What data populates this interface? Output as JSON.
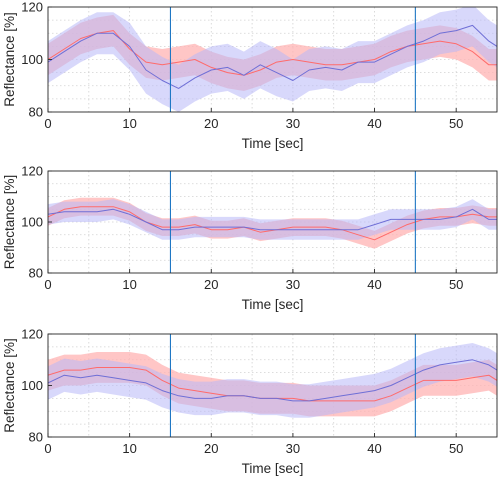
{
  "chart_data": [
    {
      "type": "line",
      "xlabel": "Time [sec]",
      "ylabel": "Reflectance [%]",
      "xlim": [
        0,
        55
      ],
      "ylim": [
        80,
        120
      ],
      "xticks": [
        0,
        10,
        20,
        30,
        40,
        50
      ],
      "yticks": [
        80,
        100,
        120
      ],
      "grid": true,
      "grid_style": "dotted",
      "vlines": [
        15,
        45
      ],
      "series": [
        {
          "color": "#ff6b6b",
          "band_color": "#ffb3b3",
          "x": [
            0,
            2,
            4,
            6,
            8,
            10,
            12,
            14,
            16,
            18,
            20,
            22,
            24,
            26,
            28,
            30,
            32,
            34,
            36,
            38,
            40,
            42,
            44,
            46,
            48,
            50,
            52,
            54,
            55
          ],
          "values": [
            100,
            104,
            108,
            110,
            111,
            104,
            99,
            98,
            99,
            100,
            97,
            95,
            94,
            96,
            99,
            100,
            99,
            98,
            98,
            99,
            100,
            103,
            105,
            106,
            107,
            106,
            103,
            98,
            98
          ],
          "band": [
            6,
            6,
            6,
            6,
            6,
            6,
            6,
            6,
            6,
            6,
            6,
            6,
            6,
            6,
            6,
            6,
            6,
            6,
            6,
            6,
            6,
            6,
            6,
            6,
            6,
            6,
            6,
            6,
            6
          ]
        },
        {
          "color": "#6f6fd6",
          "band_color": "#b8b8f7",
          "x": [
            0,
            2,
            4,
            6,
            8,
            10,
            12,
            14,
            16,
            18,
            20,
            22,
            24,
            26,
            28,
            30,
            32,
            34,
            36,
            38,
            40,
            42,
            44,
            46,
            48,
            50,
            52,
            54,
            55
          ],
          "values": [
            99,
            103,
            107,
            110,
            110,
            105,
            96,
            92,
            89,
            93,
            96,
            97,
            94,
            98,
            95,
            92,
            96,
            97,
            96,
            99,
            99,
            102,
            105,
            107,
            110,
            111,
            113,
            107,
            105
          ],
          "band": [
            8,
            8,
            8,
            8,
            8,
            9,
            9,
            9,
            9,
            9,
            9,
            9,
            9,
            9,
            9,
            8,
            8,
            8,
            8,
            8,
            8,
            8,
            8,
            8,
            8,
            8,
            8,
            8,
            8
          ]
        }
      ]
    },
    {
      "type": "line",
      "xlabel": "Time [sec]",
      "ylabel": "Reflectance [%]",
      "xlim": [
        0,
        55
      ],
      "ylim": [
        80,
        120
      ],
      "xticks": [
        0,
        10,
        20,
        30,
        40,
        50
      ],
      "yticks": [
        80,
        100,
        120
      ],
      "grid": true,
      "grid_style": "dotted",
      "vlines": [
        15,
        45
      ],
      "series": [
        {
          "color": "#ff6b6b",
          "band_color": "#ffb3b3",
          "x": [
            0,
            2,
            4,
            6,
            8,
            10,
            12,
            14,
            16,
            18,
            20,
            22,
            24,
            26,
            28,
            30,
            32,
            34,
            36,
            38,
            40,
            42,
            44,
            46,
            48,
            50,
            52,
            54,
            55
          ],
          "values": [
            102,
            105,
            106,
            106,
            106,
            104,
            100,
            98,
            98,
            99,
            97,
            97,
            98,
            96,
            97,
            98,
            98,
            98,
            97,
            95,
            93,
            96,
            99,
            101,
            102,
            102,
            103,
            102,
            102
          ],
          "band": [
            3.5,
            3.5,
            3.5,
            3.5,
            3.5,
            3.5,
            3.5,
            3.5,
            3.5,
            3.5,
            3.5,
            3.5,
            3.5,
            3.5,
            3.5,
            3.5,
            3.5,
            3.5,
            3.5,
            3.5,
            3.5,
            3.5,
            3.5,
            3.5,
            3.5,
            3.5,
            3.5,
            3.5,
            3.5
          ]
        },
        {
          "color": "#6f6fd6",
          "band_color": "#b8b8f7",
          "x": [
            0,
            2,
            4,
            6,
            8,
            10,
            12,
            14,
            16,
            18,
            20,
            22,
            24,
            26,
            28,
            30,
            32,
            34,
            36,
            38,
            40,
            42,
            44,
            46,
            48,
            50,
            52,
            54,
            55
          ],
          "values": [
            103,
            104,
            104,
            104,
            105,
            103,
            100,
            97,
            97,
            98,
            98,
            98,
            98,
            97,
            97,
            97,
            97,
            97,
            97,
            97,
            99,
            101,
            101,
            101,
            101,
            102,
            105,
            101,
            101
          ],
          "band": [
            4,
            4,
            4,
            4,
            4,
            4,
            4,
            4,
            4,
            4,
            4,
            4,
            4,
            4,
            4,
            4,
            4,
            4,
            4,
            4,
            4,
            4,
            4,
            4,
            4,
            4,
            4,
            4,
            4
          ]
        }
      ]
    },
    {
      "type": "line",
      "xlabel": "Time [sec]",
      "ylabel": "Reflectance [%]",
      "xlim": [
        0,
        55
      ],
      "ylim": [
        80,
        120
      ],
      "xticks": [
        0,
        10,
        20,
        30,
        40,
        50
      ],
      "yticks": [
        80,
        100,
        120
      ],
      "grid": true,
      "grid_style": "dotted",
      "vlines": [
        15,
        45
      ],
      "series": [
        {
          "color": "#ff6b6b",
          "band_color": "#ffb3b3",
          "x": [
            0,
            2,
            4,
            6,
            8,
            10,
            12,
            14,
            16,
            18,
            20,
            22,
            24,
            26,
            28,
            30,
            32,
            34,
            36,
            38,
            40,
            42,
            44,
            46,
            48,
            50,
            52,
            54,
            55
          ],
          "values": [
            104,
            106,
            106,
            107,
            107,
            107,
            106,
            102,
            99,
            98,
            97,
            96,
            96,
            95,
            95,
            95,
            94,
            94,
            94,
            94,
            94,
            96,
            99,
            102,
            102,
            102,
            103,
            104,
            102
          ],
          "band": [
            6,
            6,
            6,
            6,
            6,
            6,
            6,
            6,
            6,
            6,
            6,
            6,
            6,
            6,
            6,
            6,
            6,
            6,
            6,
            6,
            6,
            6,
            6,
            6,
            6,
            6,
            6,
            6,
            6
          ]
        },
        {
          "color": "#6f6fd6",
          "band_color": "#b8b8f7",
          "x": [
            0,
            2,
            4,
            6,
            8,
            10,
            12,
            14,
            16,
            18,
            20,
            22,
            24,
            26,
            28,
            30,
            32,
            34,
            36,
            38,
            40,
            42,
            44,
            46,
            48,
            50,
            52,
            54,
            55
          ],
          "values": [
            101,
            104,
            103,
            104,
            103,
            102,
            101,
            98,
            96,
            95,
            95,
            96,
            96,
            95,
            95,
            94,
            94,
            95,
            96,
            97,
            98,
            100,
            103,
            106,
            108,
            109,
            110,
            108,
            106
          ],
          "band": [
            6.5,
            6.5,
            6.5,
            6.5,
            6.5,
            6.5,
            6.5,
            6.5,
            6.5,
            6.5,
            6.5,
            6.5,
            6.5,
            6.5,
            6.5,
            6.5,
            6.5,
            6.5,
            6.5,
            6.5,
            6.5,
            6.5,
            6.5,
            6.5,
            6.5,
            6.5,
            6.5,
            6.5,
            6.5
          ]
        }
      ]
    }
  ]
}
